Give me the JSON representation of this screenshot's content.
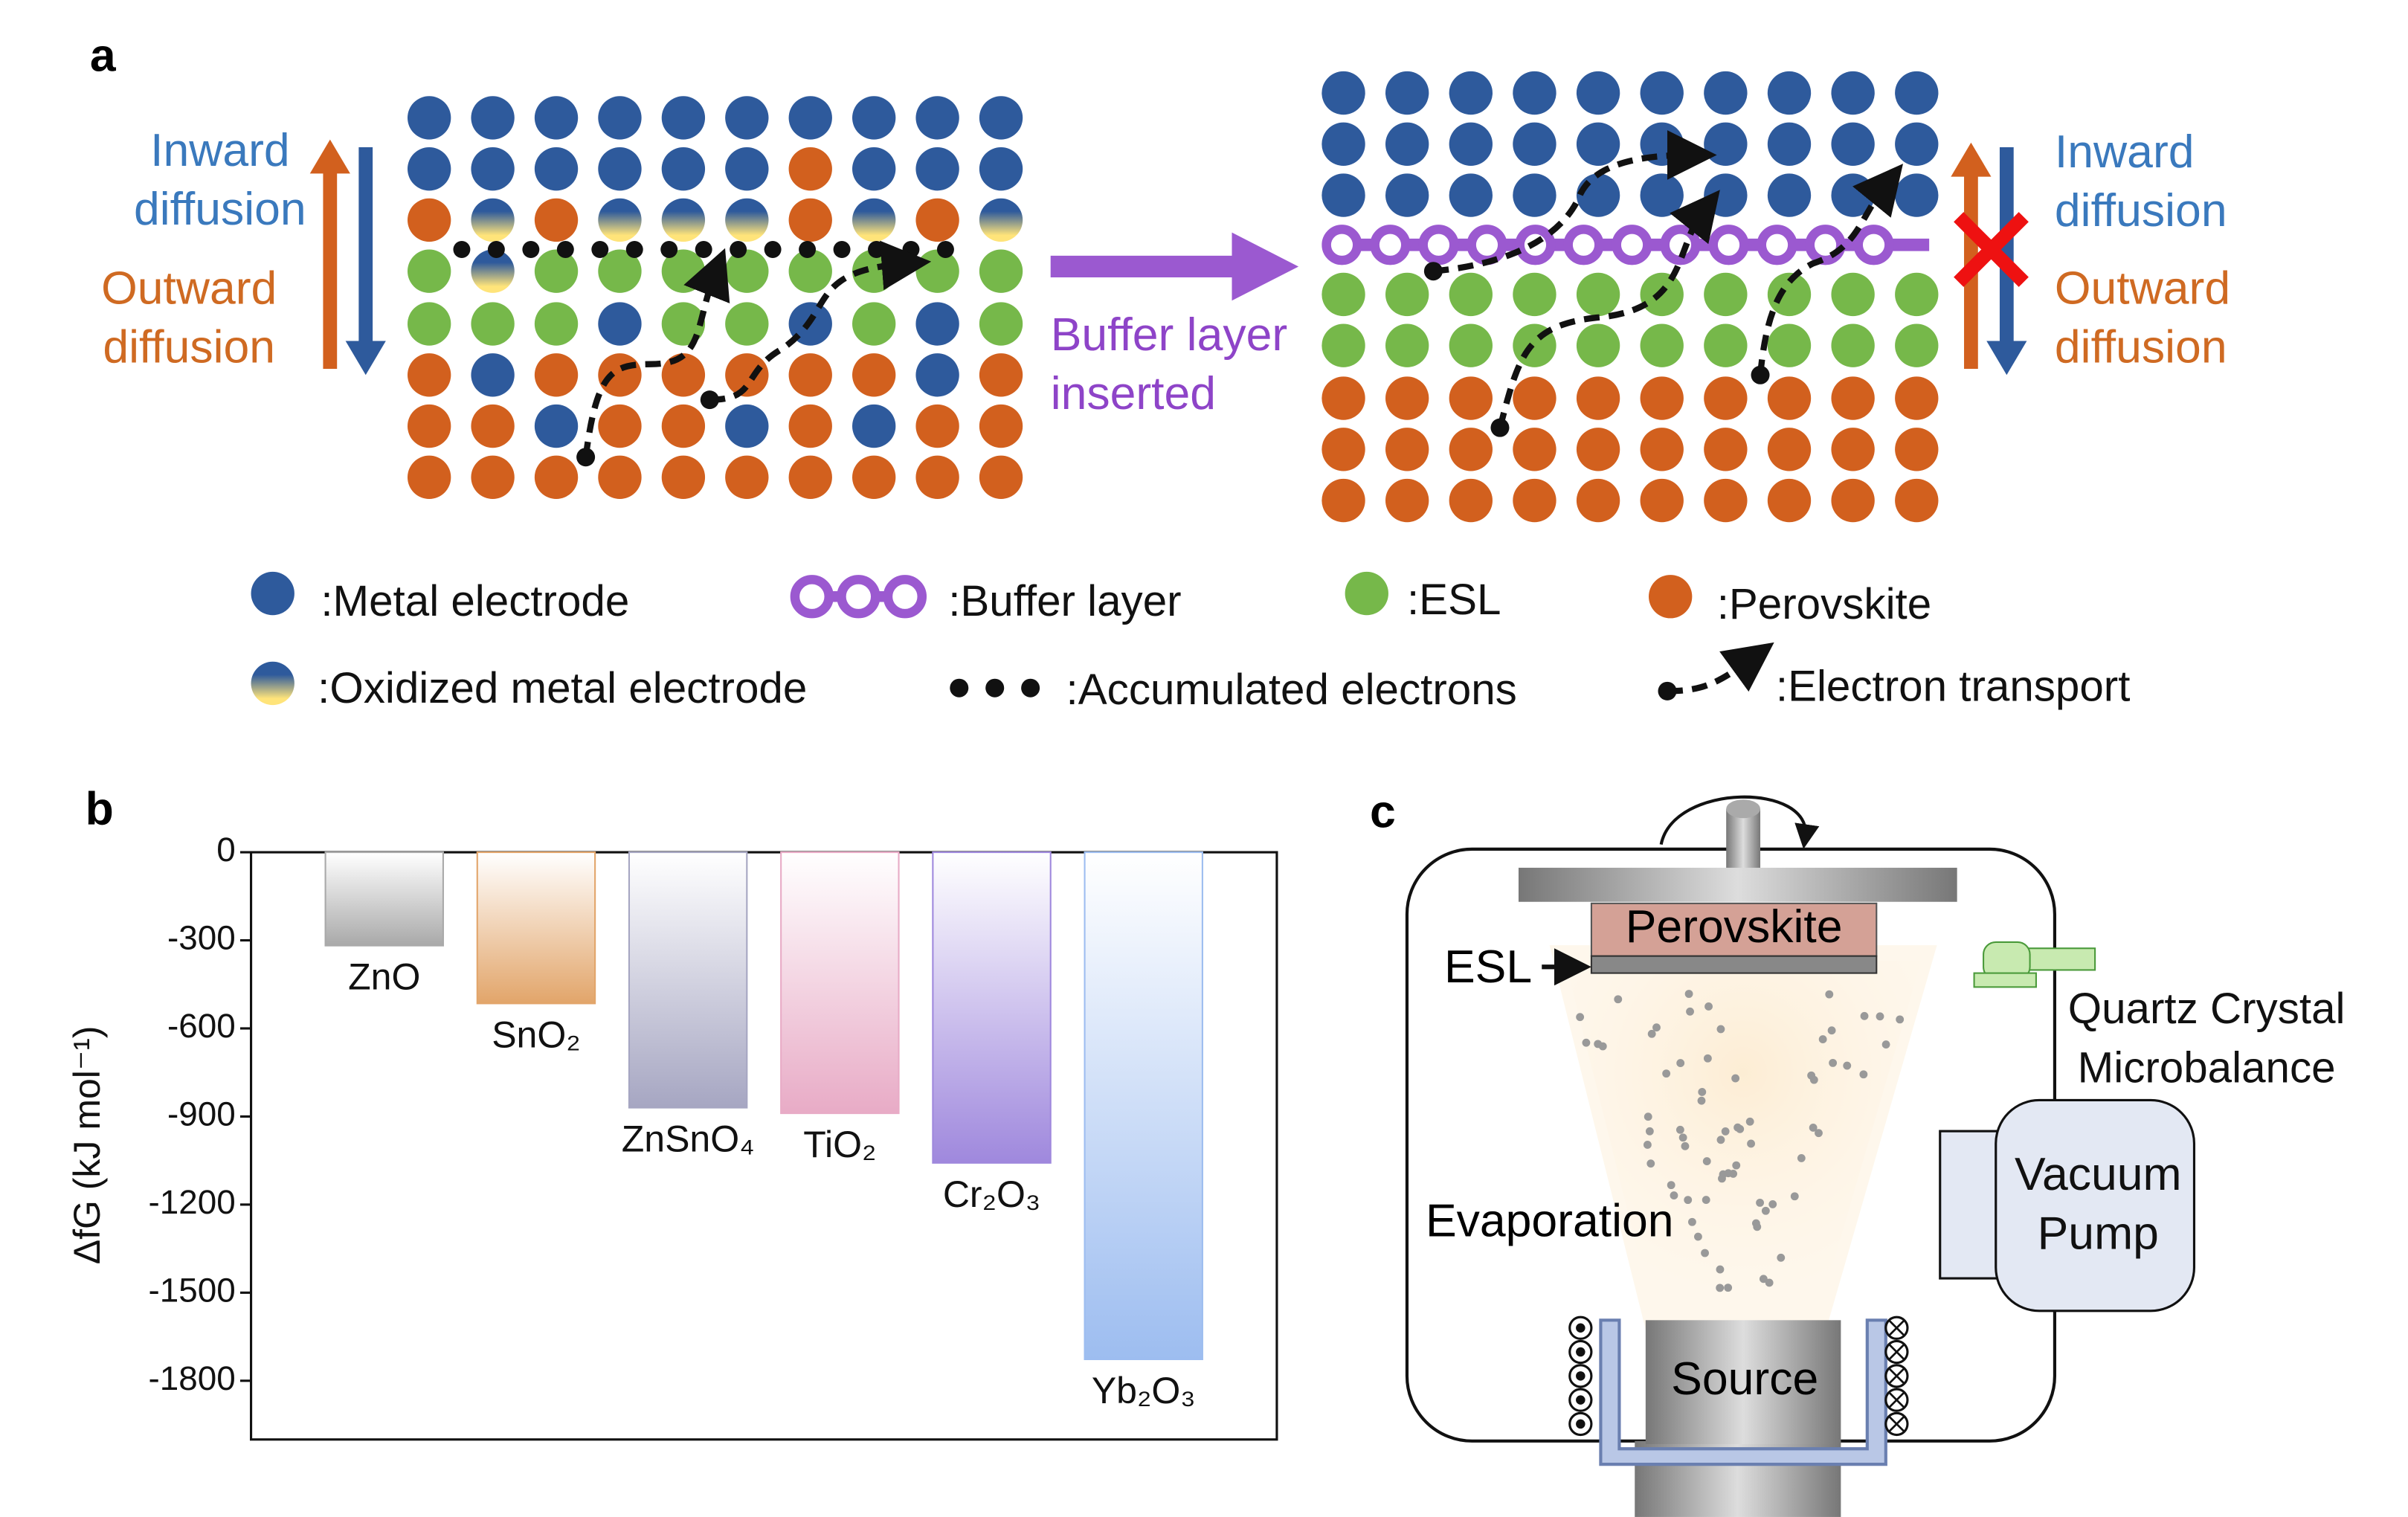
{
  "panel_a": {
    "label": "a",
    "left_inward": [
      "Inward",
      "diffusion"
    ],
    "left_outward": [
      "Outward",
      "diffusion"
    ],
    "arrow_text": [
      "Buffer layer",
      "inserted"
    ],
    "right_inward": [
      "Inward",
      "diffusion"
    ],
    "right_outward": [
      "Outward",
      "diffusion"
    ],
    "legend": [
      ":Metal electrode",
      ":Buffer layer",
      ":ESL",
      ":Perovskite",
      ":Oxidized metal electrode",
      ":Accumulated electrons",
      ":Electron transport"
    ]
  },
  "panel_c": {
    "label": "c",
    "perovskite": "Perovskite",
    "esl": "ESL",
    "qcm": [
      "Quartz Crystal",
      "Microbalance"
    ],
    "pump": [
      "Vacuum",
      "Pump"
    ],
    "evaporation": "Evaporation",
    "source": "Source"
  },
  "chart_data": {
    "type": "bar",
    "label": "b",
    "y_label": "ΔfG (kJ mol⁻¹)",
    "categories": [
      "ZnO",
      "SnO₂",
      "ZnSnO₄",
      "TiO₂",
      "Cr₂O₃",
      "Yb₂O₃"
    ],
    "values": [
      -318,
      -515,
      -870,
      -889,
      -1058,
      -1727
    ],
    "colors": [
      "#a9a9a9",
      "#e2a56a",
      "#a6a6c2",
      "#e8abc6",
      "#9f88dd",
      "#9dbdf0"
    ],
    "ylim": [
      0,
      -2000
    ],
    "yticks": [
      0,
      -300,
      -600,
      -900,
      -1200,
      -1500,
      -1800
    ]
  }
}
